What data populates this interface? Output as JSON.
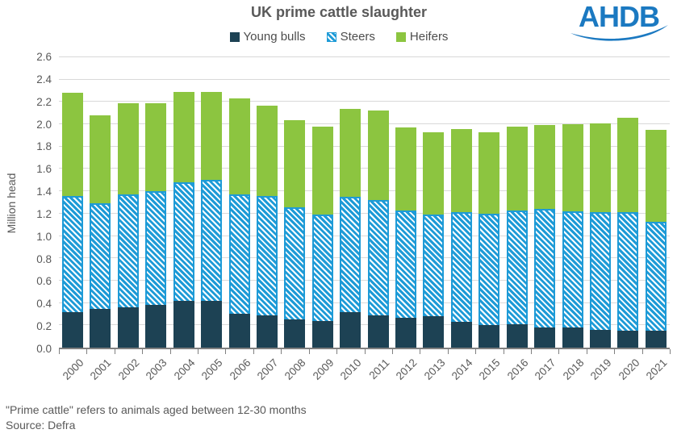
{
  "header": {
    "title": "UK prime cattle slaughter",
    "logo_text": "AHDB"
  },
  "legend": [
    {
      "key": "young_bulls",
      "label": "Young bulls",
      "color": "#1d4254",
      "pattern": "solid"
    },
    {
      "key": "steers",
      "label": "Steers",
      "color": "#1e9bd7",
      "pattern": "white-diagonal-hatch"
    },
    {
      "key": "heifers",
      "label": "Heifers",
      "color": "#8cc540",
      "pattern": "solid"
    }
  ],
  "footnotes": {
    "definition": "\"Prime cattle\" refers to animals aged between 12-30 months",
    "source": "Source: Defra"
  },
  "colors": {
    "young_bulls": "#1d4254",
    "steers_blue": "#1e9bd7",
    "heifers_green": "#8cc540",
    "title_text": "#595959",
    "axis_line": "#808080",
    "gridline": "#d9d9d9",
    "logo_blue": "#1b79c1"
  },
  "chart_data": {
    "type": "bar",
    "stacked": true,
    "title": "UK prime cattle slaughter",
    "xlabel": "",
    "ylabel": "Million head",
    "ylim": [
      0,
      2.6
    ],
    "ytick_step": 0.2,
    "grid": true,
    "legend_position": "top",
    "categories": [
      "2000",
      "2001",
      "2002",
      "2003",
      "2004",
      "2005",
      "2006",
      "2007",
      "2008",
      "2009",
      "2010",
      "2011",
      "2012",
      "2013",
      "2014",
      "2015",
      "2016",
      "2017",
      "2018",
      "2019",
      "2020",
      "2021"
    ],
    "series": [
      {
        "name": "Young bulls",
        "values": [
          0.32,
          0.35,
          0.36,
          0.38,
          0.42,
          0.42,
          0.3,
          0.29,
          0.25,
          0.24,
          0.32,
          0.29,
          0.27,
          0.28,
          0.23,
          0.2,
          0.21,
          0.18,
          0.18,
          0.16,
          0.15,
          0.15
        ]
      },
      {
        "name": "Steers",
        "values": [
          1.04,
          0.94,
          1.01,
          1.02,
          1.06,
          1.08,
          1.07,
          1.07,
          1.01,
          0.95,
          1.03,
          1.03,
          0.96,
          0.91,
          0.98,
          1.0,
          1.02,
          1.06,
          1.04,
          1.05,
          1.06,
          0.98
        ]
      },
      {
        "name": "Heifers",
        "values": [
          0.92,
          0.79,
          0.82,
          0.79,
          0.81,
          0.79,
          0.86,
          0.81,
          0.78,
          0.79,
          0.79,
          0.8,
          0.74,
          0.74,
          0.75,
          0.73,
          0.75,
          0.75,
          0.78,
          0.8,
          0.85,
          0.82
        ]
      }
    ],
    "totals": [
      2.28,
      2.08,
      2.19,
      2.19,
      2.29,
      2.29,
      2.23,
      2.17,
      2.04,
      1.98,
      2.14,
      2.12,
      1.97,
      1.93,
      1.96,
      1.93,
      1.98,
      1.99,
      2.0,
      2.01,
      2.06,
      1.95
    ]
  }
}
